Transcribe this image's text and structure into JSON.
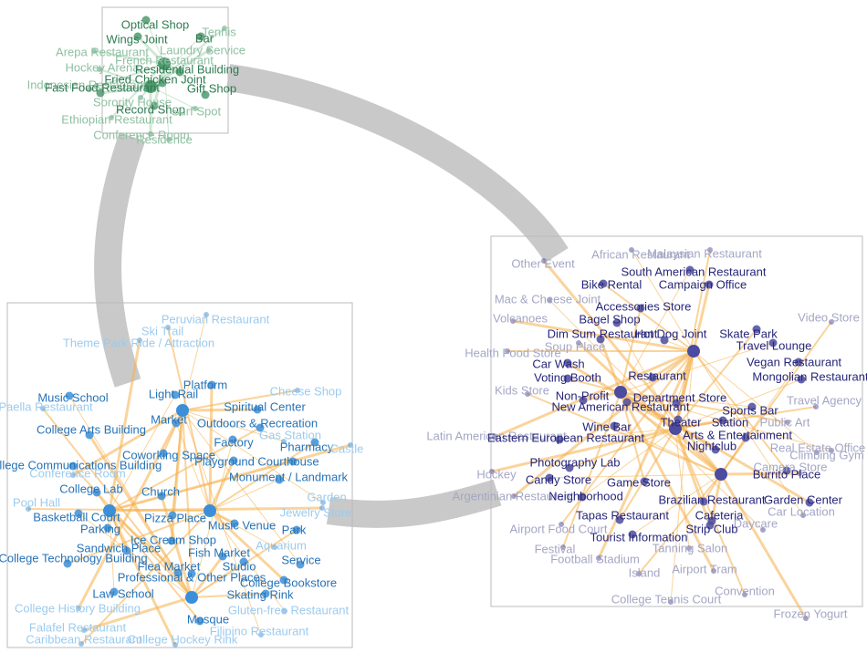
{
  "clusters": [
    {
      "labels": [
        "Optical Shop",
        "Tennis",
        "Wings Joint",
        "Bar",
        "Arepa Restaurant",
        "Laundry Service",
        "French Restaurant",
        "Hockey Arena",
        "Residential Building",
        "Fried Chicken Joint",
        "Indonesian Restaurant",
        "Fast Food Restaurant",
        "Gift Shop",
        "Sorority House",
        "Record Shop",
        "Surf Spot",
        "Ethiopian Restaurant",
        "Conference Room",
        "Residence"
      ]
    },
    {
      "labels": [
        "Peruvian Restaurant",
        "Ski Trail",
        "Theme Park Ride / Attraction",
        "Music School",
        "Cheese Shop",
        "Platform",
        "Light Rail",
        "Paella Restaurant",
        "Spiritual Center",
        "Market",
        "Outdoors & Recreation",
        "College Arts Building",
        "Gas Station",
        "Pharmacy",
        "Castle",
        "Factory",
        "Coworking Space",
        "Playground",
        "Courthouse",
        "College Communications Building",
        "Conference Room",
        "Monument / Landmark",
        "College Lab",
        "Church",
        "Garden",
        "Pool Hall",
        "Jewelry Store",
        "Basketball Court",
        "Pizza Place",
        "Music Venue",
        "Parking",
        "Park",
        "Ice Cream Shop",
        "Aquarium",
        "Sandwich Place",
        "Fish Market",
        "Service",
        "College Technology Building",
        "Flea Market",
        "Studio",
        "Professional & Other Places",
        "College Bookstore",
        "Law School",
        "Skating Rink",
        "College History Building",
        "Gluten-free Restaurant",
        "Mosque",
        "Falafel Restaurant",
        "Filipino Restaurant",
        "Caribbean Restaurant",
        "College Hockey Rink"
      ]
    },
    {
      "labels": [
        "African Restaurant",
        "Malaysian Restaurant",
        "Other Event",
        "South American Restaurant",
        "Bike Rental",
        "Campaign Office",
        "Mac & Cheese Joint",
        "Accessories Store",
        "Volcanoes",
        "Bagel Shop",
        "Video Store",
        "Dim Sum Restaurant",
        "Hot Dog Joint",
        "Skate Park",
        "Soup Place",
        "Travel Lounge",
        "Health Food Store",
        "Car Wash",
        "Vegan Restaurant",
        "Voting Booth",
        "Restaurant",
        "Mongolian Restaurant",
        "Kids Store",
        "Non-Profit",
        "Department Store",
        "Travel Agency",
        "New American Restaurant",
        "Sports Bar",
        "Theater",
        "Station",
        "Wine Bar",
        "Public Art",
        "Latin American Restaurant",
        "Eastern European Restaurant",
        "Arts & Entertainment",
        "Nightclub",
        "Real Estate Office",
        "Photography Lab",
        "Camera Store",
        "Climbing Gym",
        "Burrito Place",
        "Hockey",
        "Candy Store",
        "Game Store",
        "Argentinian Restaurant",
        "Neighborhood",
        "Brazilian Restaurant",
        "Garden Center",
        "Car Location",
        "Tapas Restaurant",
        "Cafeteria",
        "Daycare",
        "Airport Food Court",
        "Strip Club",
        "Tourist Information",
        "Festival",
        "Football Stadium",
        "Tanning Salon",
        "Island",
        "Airport Tram",
        "College Tennis Court",
        "Convention",
        "Frozen Yogurt"
      ]
    }
  ]
}
